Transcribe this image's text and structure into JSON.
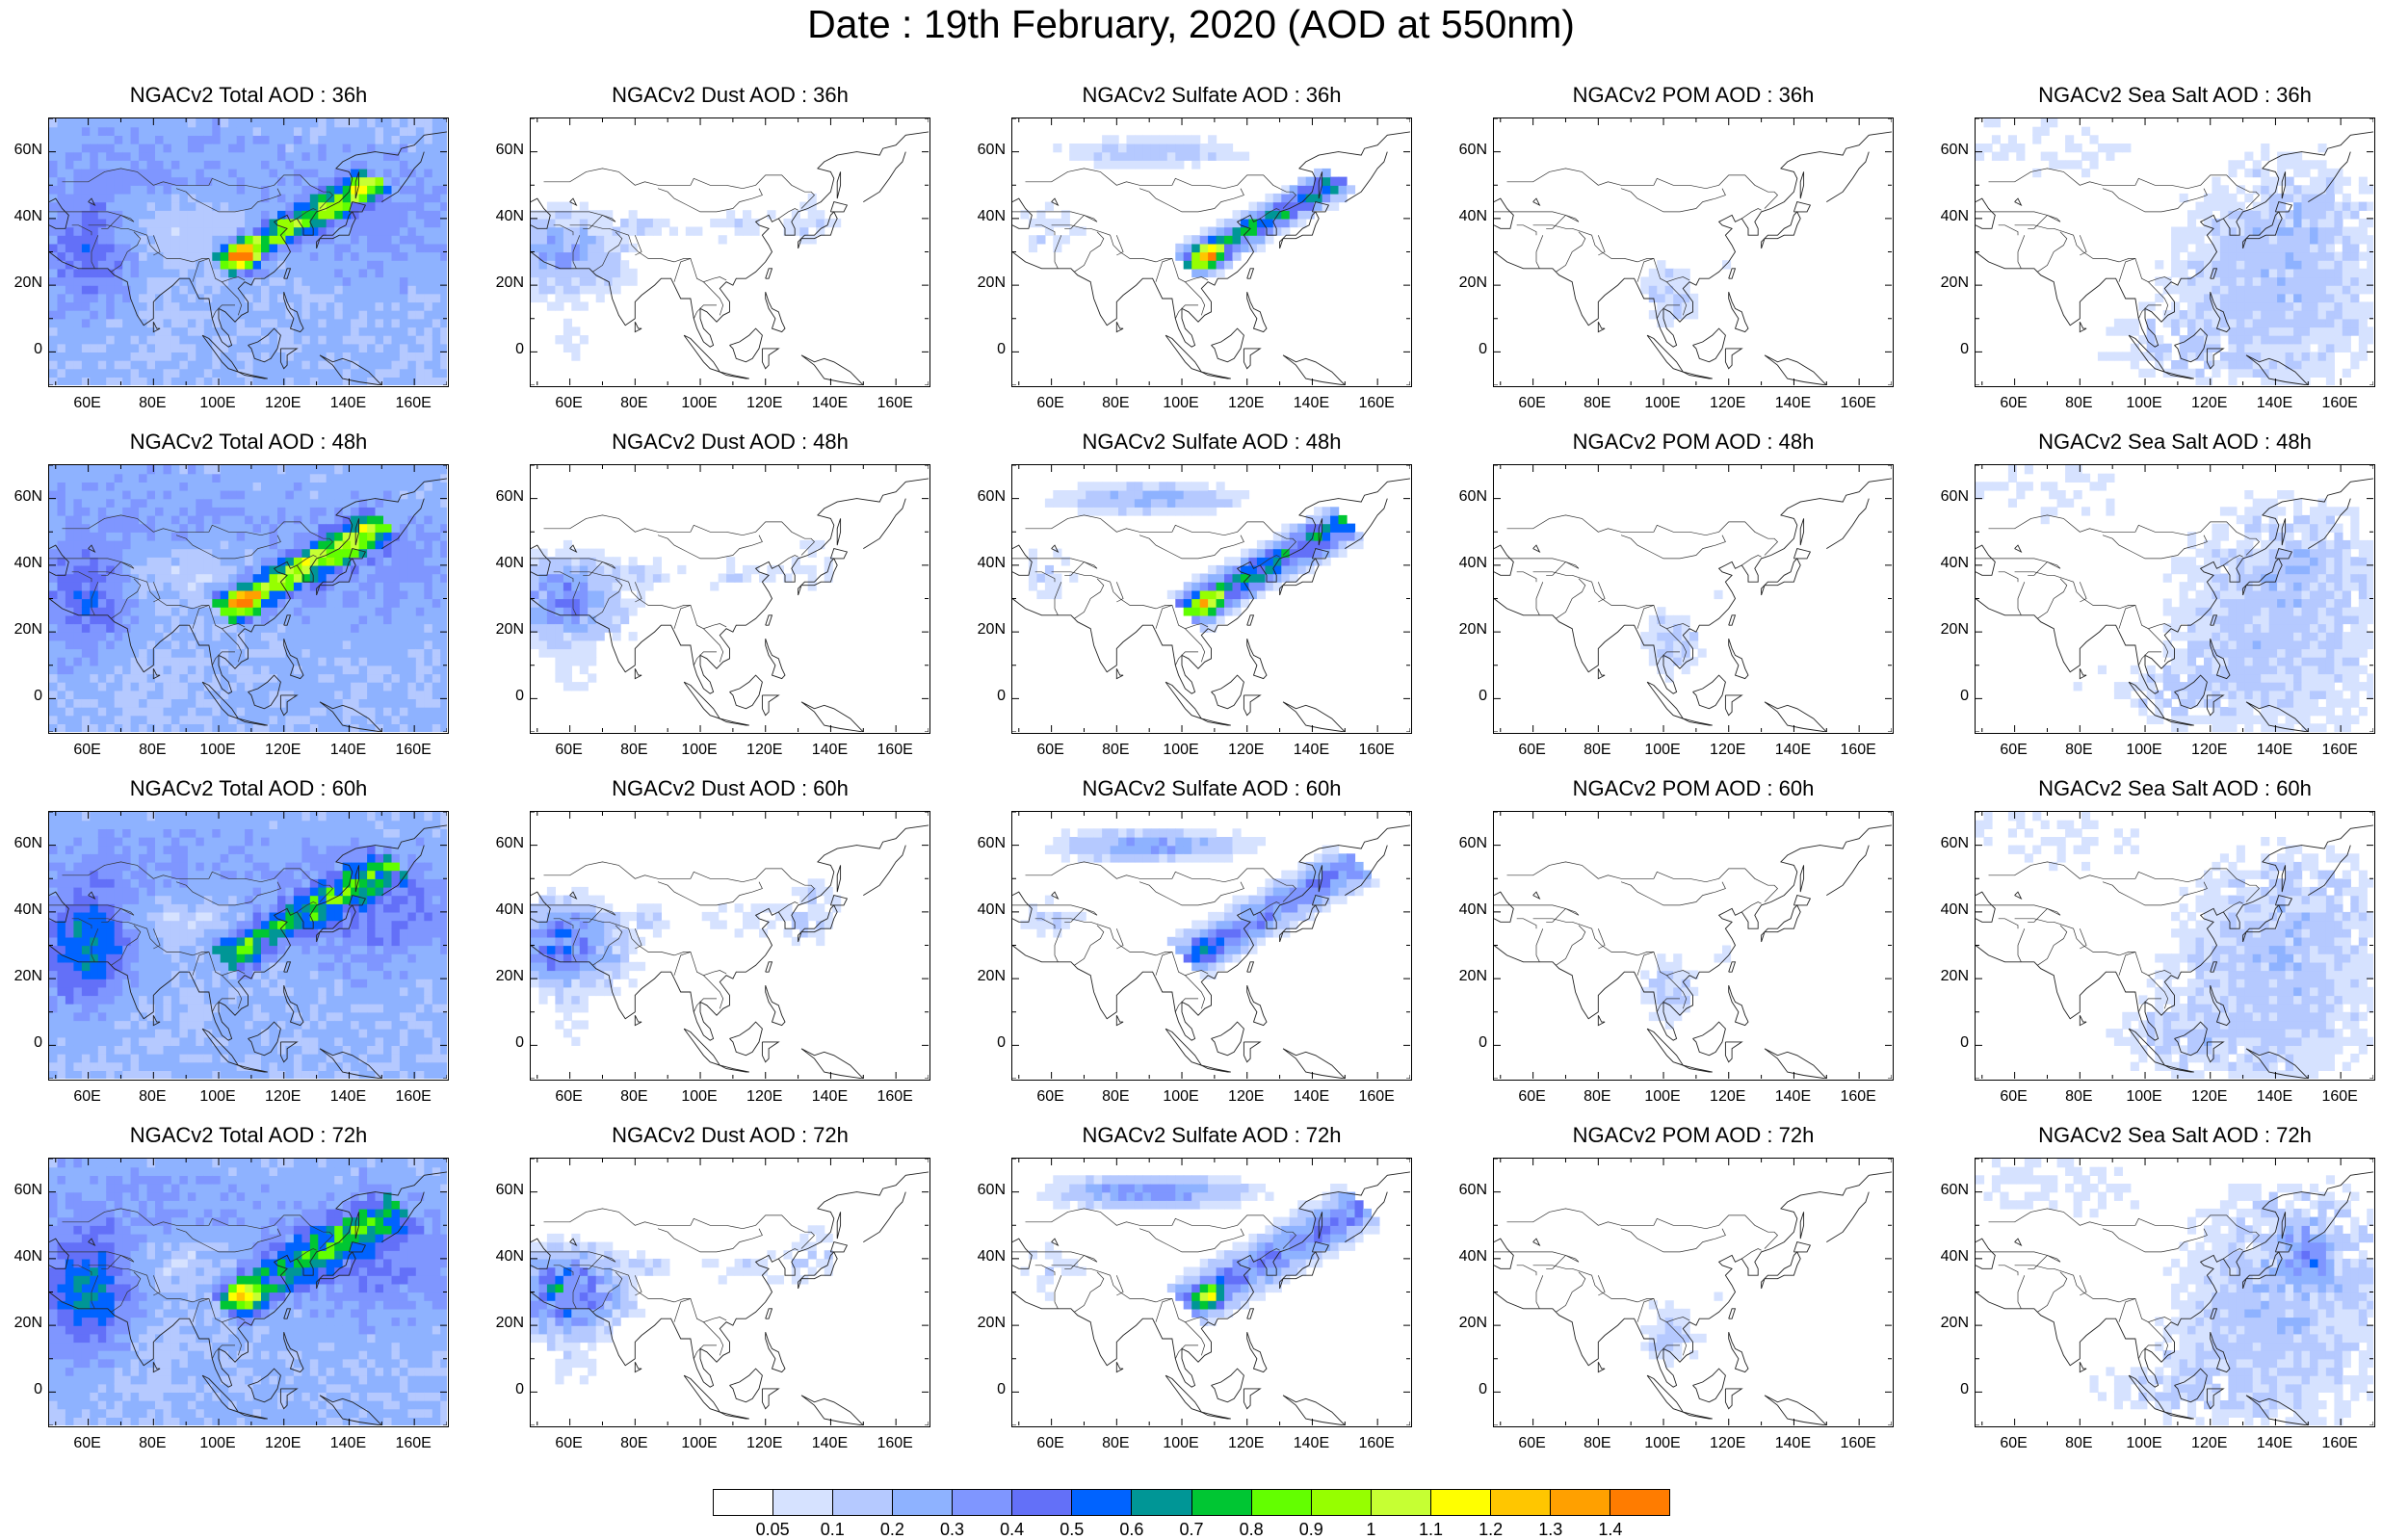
{
  "title": "Date : 19th February, 2020 (AOD at 550nm)",
  "axes": {
    "xticks": [
      "60E",
      "80E",
      "100E",
      "120E",
      "140E",
      "160E"
    ],
    "yticks": [
      "60N",
      "40N",
      "20N",
      "0"
    ]
  },
  "panels": [
    {
      "title": "NGACv2 Total AOD : 36h",
      "species": "total",
      "hour": "36h"
    },
    {
      "title": "NGACv2 Dust AOD : 36h",
      "species": "dust",
      "hour": "36h"
    },
    {
      "title": "NGACv2 Sulfate AOD : 36h",
      "species": "sulfate",
      "hour": "36h"
    },
    {
      "title": "NGACv2 POM AOD : 36h",
      "species": "pom",
      "hour": "36h"
    },
    {
      "title": "NGACv2 Sea Salt AOD : 36h",
      "species": "seasalt",
      "hour": "36h"
    },
    {
      "title": "NGACv2 Total AOD : 48h",
      "species": "total",
      "hour": "48h"
    },
    {
      "title": "NGACv2 Dust AOD : 48h",
      "species": "dust",
      "hour": "48h"
    },
    {
      "title": "NGACv2 Sulfate AOD : 48h",
      "species": "sulfate",
      "hour": "48h"
    },
    {
      "title": "NGACv2 POM AOD : 48h",
      "species": "pom",
      "hour": "48h"
    },
    {
      "title": "NGACv2 Sea Salt AOD : 48h",
      "species": "seasalt",
      "hour": "48h"
    },
    {
      "title": "NGACv2 Total AOD : 60h",
      "species": "total",
      "hour": "60h"
    },
    {
      "title": "NGACv2 Dust AOD : 60h",
      "species": "dust",
      "hour": "60h"
    },
    {
      "title": "NGACv2 Sulfate AOD : 60h",
      "species": "sulfate",
      "hour": "60h"
    },
    {
      "title": "NGACv2 POM AOD : 60h",
      "species": "pom",
      "hour": "60h"
    },
    {
      "title": "NGACv2 Sea Salt AOD : 60h",
      "species": "seasalt",
      "hour": "60h"
    },
    {
      "title": "NGACv2 Total AOD : 72h",
      "species": "total",
      "hour": "72h"
    },
    {
      "title": "NGACv2 Dust AOD : 72h",
      "species": "dust",
      "hour": "72h"
    },
    {
      "title": "NGACv2 Sulfate AOD : 72h",
      "species": "sulfate",
      "hour": "72h"
    },
    {
      "title": "NGACv2 POM AOD : 72h",
      "species": "pom",
      "hour": "72h"
    },
    {
      "title": "NGACv2 Sea Salt  AOD : 72h",
      "species": "seasalt",
      "hour": "72h"
    }
  ],
  "colorbar": {
    "labels": [
      "0.05",
      "0.1",
      "0.2",
      "0.3",
      "0.4",
      "0.5",
      "0.6",
      "0.7",
      "0.8",
      "0.9",
      "1",
      "1.1",
      "1.2",
      "1.3",
      "1.4"
    ],
    "colors": [
      "#ffffff",
      "#d6e2ff",
      "#b5c9ff",
      "#8eb2ff",
      "#7f96ff",
      "#6370f8",
      "#0063ff",
      "#009696",
      "#00c633",
      "#63ff00",
      "#96ff00",
      "#c6ff33",
      "#ffff00",
      "#ffc600",
      "#ffa000",
      "#ff7c00",
      "#ff1900"
    ]
  }
}
